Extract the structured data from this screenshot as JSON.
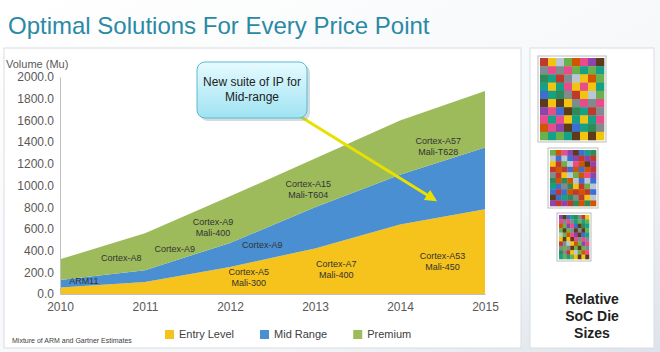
{
  "chart_data": {
    "type": "area",
    "title": "Optimal Solutions For Every Price Point",
    "y_label": "Volume (Mu)",
    "x": [
      2010,
      2011,
      2012,
      2013,
      2014,
      2015
    ],
    "xlim": [
      2010,
      2015
    ],
    "xticks": [
      2010,
      2011,
      2012,
      2013,
      2014,
      2015
    ],
    "ylim": [
      0,
      2000
    ],
    "yticks": [
      {
        "value": 0,
        "label": "0.0"
      },
      {
        "value": 200,
        "label": "200.0"
      },
      {
        "value": 400,
        "label": "400.0"
      },
      {
        "value": 600,
        "label": "600.0"
      },
      {
        "value": 800,
        "label": "800.0"
      },
      {
        "value": 1000,
        "label": "1000.0"
      },
      {
        "value": 1200,
        "label": "1200.0"
      },
      {
        "value": 1400,
        "label": "1400.0"
      },
      {
        "value": 1600,
        "label": "1600.0"
      },
      {
        "value": 1800,
        "label": "1800.0"
      },
      {
        "value": 2000,
        "label": "2000.0"
      }
    ],
    "series": [
      {
        "name": "Entry Level",
        "color": "#f6c21c",
        "values": [
          60,
          110,
          250,
          420,
          640,
          780
        ]
      },
      {
        "name": "Mid Range",
        "color": "#4a8fd2",
        "values": [
          70,
          110,
          220,
          380,
          460,
          570
        ]
      },
      {
        "name": "Premium",
        "color": "#9dbb5b",
        "values": [
          190,
          340,
          430,
          450,
          500,
          520
        ]
      }
    ],
    "stacked": true,
    "grid": false,
    "legend": "bottom",
    "annotations": [
      [
        "ARM11"
      ],
      [
        "Cortex-A8"
      ],
      [
        "Cortex-A9"
      ],
      [
        "Cortex-A9",
        "Mali-400"
      ],
      [
        "Cortex-A9"
      ],
      [
        "Cortex-A5",
        "Mali-300"
      ],
      [
        "Cortex-A15",
        "Mali-T604"
      ],
      [
        "Cortex-A7",
        "Mali-400"
      ],
      [
        "Cortex-A57",
        "Mali-T628"
      ],
      [
        "Cortex-A53",
        "Mali-450"
      ]
    ],
    "callout": [
      "New suite of IP for",
      "Mid-range"
    ],
    "source": "Mixture of ARM and Gartner Estimates",
    "side_label": [
      "Relative",
      "SoC Die",
      "Sizes"
    ]
  }
}
